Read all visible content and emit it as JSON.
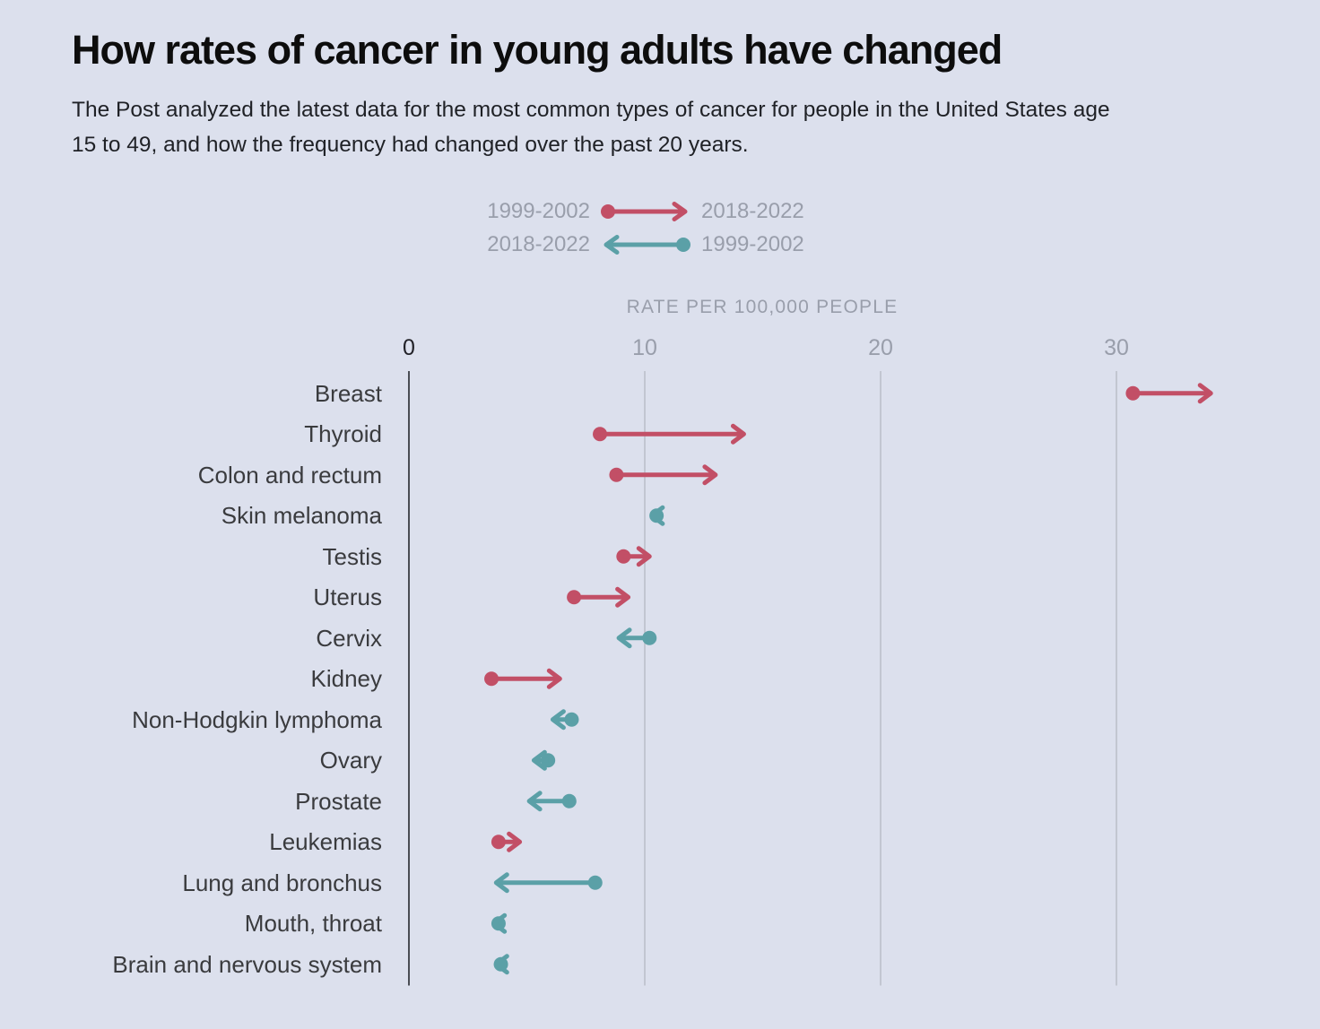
{
  "page": {
    "background": "#dce0ed"
  },
  "header": {
    "title": "How rates of cancer in young adults have changed",
    "subtitle": "The Post analyzed the latest data for the most common types of cancer for people in the United States age 15 to 49, and how the frequency had changed over the past 20 years."
  },
  "legend": {
    "rows": [
      {
        "left_label": "1999-2002",
        "right_label": "2018-2022",
        "direction": "right",
        "meaning": "rate increased",
        "color": "#c24f66"
      },
      {
        "left_label": "2018-2022",
        "right_label": "1999-2002",
        "direction": "left",
        "meaning": "rate decreased",
        "color": "#5ba0a7"
      }
    ]
  },
  "chart_data": {
    "type": "arrow",
    "title": "How rates of cancer in young adults have changed",
    "axis_title": "RATE PER 100,000 PEOPLE",
    "xlabel": "RATE PER 100,000 PEOPLE",
    "ylabel": "",
    "x_ticks": [
      0,
      10,
      20,
      30
    ],
    "xlim": [
      0,
      38.5
    ],
    "grid": "vertical",
    "legend_position": "top-center",
    "colors": {
      "increase": "#c24f66",
      "decrease": "#5ba0a7"
    },
    "series_meaning": "start = rate in 1999-2002, end = rate in 2018-2022, per 100,000 people",
    "rows": [
      {
        "category": "Breast",
        "start": 30.7,
        "end": 34.0,
        "change": "increase"
      },
      {
        "category": "Thyroid",
        "start": 8.1,
        "end": 14.2,
        "change": "increase"
      },
      {
        "category": "Colon and rectum",
        "start": 8.8,
        "end": 13.0,
        "change": "increase"
      },
      {
        "category": "Skin melanoma",
        "start": 10.5,
        "end": 10.3,
        "change": "decrease"
      },
      {
        "category": "Testis",
        "start": 9.1,
        "end": 10.2,
        "change": "increase"
      },
      {
        "category": "Uterus",
        "start": 7.0,
        "end": 9.3,
        "change": "increase"
      },
      {
        "category": "Cervix",
        "start": 10.2,
        "end": 8.9,
        "change": "decrease"
      },
      {
        "category": "Kidney",
        "start": 3.5,
        "end": 6.4,
        "change": "increase"
      },
      {
        "category": "Non-Hodgkin lymphoma",
        "start": 6.9,
        "end": 6.1,
        "change": "decrease"
      },
      {
        "category": "Ovary",
        "start": 5.9,
        "end": 5.3,
        "change": "decrease"
      },
      {
        "category": "Prostate",
        "start": 6.8,
        "end": 5.1,
        "change": "decrease"
      },
      {
        "category": "Leukemias",
        "start": 3.8,
        "end": 4.7,
        "change": "increase"
      },
      {
        "category": "Lung and bronchus",
        "start": 7.9,
        "end": 3.7,
        "change": "decrease"
      },
      {
        "category": "Mouth, throat",
        "start": 3.8,
        "end": 3.6,
        "change": "decrease"
      },
      {
        "category": "Brain and nervous system",
        "start": 3.9,
        "end": 3.7,
        "change": "decrease"
      }
    ]
  }
}
